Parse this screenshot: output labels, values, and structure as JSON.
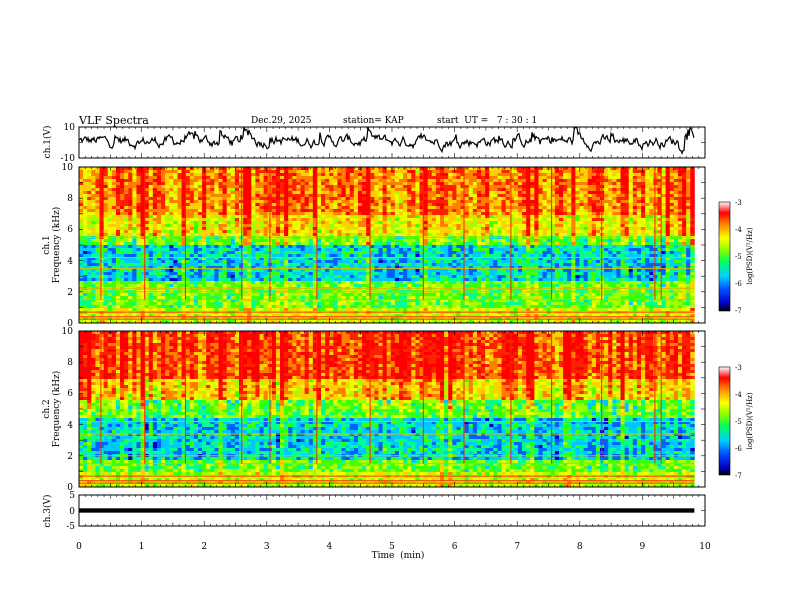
{
  "header": {
    "title": "VLF Spectra",
    "date": "Dec.29, 2025",
    "station": "station= KAP",
    "start": "start  UT =   7 : 30 : 1"
  },
  "chart_data": [
    {
      "id": "ch1-waveform",
      "type": "line",
      "ylabel": "ch.1(V)",
      "ylim": [
        -10,
        10
      ],
      "yticks": [
        "10",
        "-10"
      ],
      "xlim": [
        0,
        10
      ],
      "signal": {
        "mean": 0.8,
        "spread_V": [
          -7,
          10
        ],
        "ends_at_min": 9.83
      }
    },
    {
      "id": "ch1-spectrogram",
      "type": "heatmap",
      "ylabel": "ch.1",
      "ylabel2": "Frequency (kHz)",
      "ylim": [
        0,
        10
      ],
      "yticks": [
        "0",
        "2",
        "4",
        "6",
        "8",
        "10"
      ],
      "xlim": [
        0,
        10
      ],
      "data_end_min": 9.83,
      "quiet_band_kHz": [
        2.6,
        5.0
      ],
      "lines_kHz": [
        0.25,
        0.4,
        0.7,
        1.5,
        2.0,
        2.2,
        3.5,
        4.2,
        5.5
      ],
      "colorbar": {
        "label": "log(PSD)(V²/Hz)",
        "range": [
          -7,
          -3
        ],
        "ticks": [
          "-3",
          "-4",
          "-5",
          "-6",
          "-7"
        ]
      }
    },
    {
      "id": "ch2-spectrogram",
      "type": "heatmap",
      "ylabel": "ch.2",
      "ylabel2": "Frequency (kHz)",
      "ylim": [
        0,
        10
      ],
      "yticks": [
        "0",
        "2",
        "4",
        "6",
        "8",
        "10"
      ],
      "xlim": [
        0,
        10
      ],
      "data_end_min": 9.83,
      "quiet_band_kHz": [
        1.8,
        4.4
      ],
      "lines_kHz": [
        0.25,
        0.4,
        0.7,
        1.5,
        2.0,
        3.4,
        4.2
      ],
      "colorbar": {
        "label": "log(PSD)(V²/Hz)",
        "range": [
          -7,
          -3
        ],
        "ticks": [
          "-3",
          "-4",
          "-5",
          "-6",
          "-7"
        ]
      }
    },
    {
      "id": "ch3-waveform",
      "type": "line",
      "ylabel": "ch.3(V)",
      "ylim": [
        -5,
        5
      ],
      "yticks": [
        "5",
        "0",
        "-5"
      ],
      "xlim": [
        0,
        10
      ],
      "xlabel": "Time  (min)",
      "xticks": [
        "0",
        "1",
        "2",
        "3",
        "4",
        "5",
        "6",
        "7",
        "8",
        "9",
        "10"
      ],
      "signal": {
        "level_V": 0,
        "band_V": 0.7,
        "ends_at_min": 9.83
      }
    }
  ]
}
